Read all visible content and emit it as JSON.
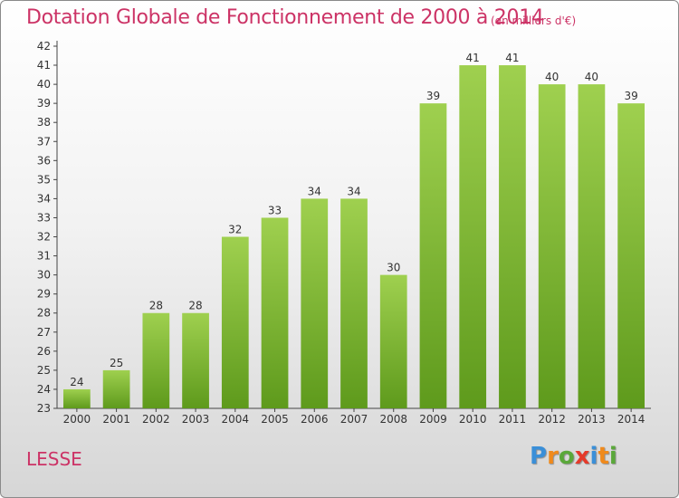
{
  "header": {
    "title": "Dotation Globale de Fonctionnement de 2000 à 2014",
    "subtitle": "(en milliers d'€)"
  },
  "footer": {
    "commune": "LESSE",
    "logo_letters": [
      "P",
      "r",
      "o",
      "x",
      "i",
      "t",
      "i"
    ]
  },
  "chart_data": {
    "type": "bar",
    "title": "Dotation Globale de Fonctionnement de 2000 à 2014",
    "subtitle": "(en milliers d'€)",
    "categories": [
      "2000",
      "2001",
      "2002",
      "2003",
      "2004",
      "2005",
      "2006",
      "2007",
      "2008",
      "2009",
      "2010",
      "2011",
      "2012",
      "2013",
      "2014"
    ],
    "values": [
      24,
      25,
      28,
      28,
      32,
      33,
      34,
      34,
      30,
      39,
      41,
      41,
      40,
      40,
      39
    ],
    "xlabel": "",
    "ylabel": "",
    "ylim": [
      23,
      42
    ],
    "yticks": [
      23,
      24,
      25,
      26,
      27,
      28,
      29,
      30,
      31,
      32,
      33,
      34,
      35,
      36,
      37,
      38,
      39,
      40,
      41,
      42
    ],
    "grid": false,
    "legend": "none",
    "bar_color_top": "#9fd04f",
    "bar_color_bottom": "#5e9a1c",
    "accent_color": "#cc3366"
  }
}
